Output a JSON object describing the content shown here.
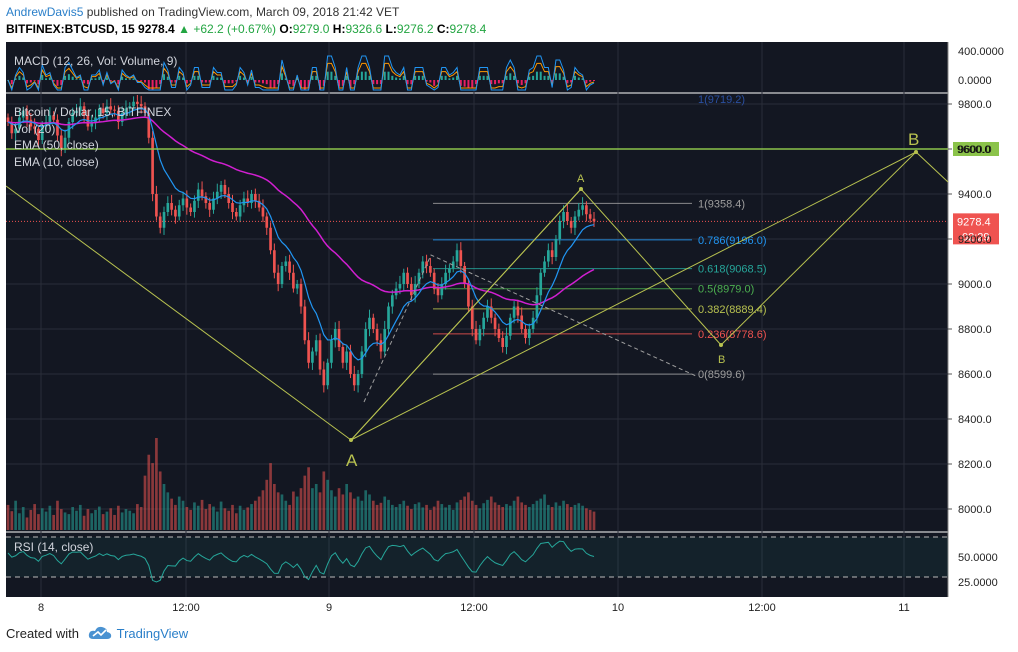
{
  "header": {
    "author": "AndrewDavis5",
    "published_text": "published on TradingView.com, March 09, 2018 21:42 VET",
    "symbol": "BITFINEX:BTCUSD, 15",
    "last": "9278.4",
    "change": "+62.2 (+0.67%)",
    "ohlc": [
      {
        "label": "O:",
        "value": "9279.0"
      },
      {
        "label": "H:",
        "value": "9326.6"
      },
      {
        "label": "L:",
        "value": "9276.2"
      },
      {
        "label": "C:",
        "value": "9278.4"
      }
    ]
  },
  "footer": {
    "created_with": "Created with",
    "brand": "TradingView",
    "logo_icon": "tradingview-cloud-icon"
  },
  "colors": {
    "background": "#131722",
    "candle_up": "#26a69a",
    "candle_down": "#ef5350",
    "ema50": "#d11fd1",
    "ema10": "#2196f3",
    "pattern": "#b8c250",
    "hline": "#8bc34a",
    "macd": "#2196f3",
    "signal": "#ff9800",
    "rsi": "#26a69a"
  },
  "chart_data": [
    {
      "type": "candlestick",
      "title": "Bitcoin / Dollar, 15, BITFINEX",
      "indicators": [
        "Vol (20)",
        "EMA (50, close)",
        "EMA (10, close)"
      ],
      "x_ticks": [
        "8",
        "12:00",
        "9",
        "12:00",
        "10",
        "12:00",
        "11"
      ],
      "y_ticks": [
        "8000.0",
        "8200.0",
        "8400.0",
        "8600.0",
        "8800.0",
        "9000.0",
        "9200.0",
        "9400.0",
        "9600.0",
        "9800.0"
      ],
      "ylim": [
        7940,
        9840
      ],
      "overlap_label": "1(9719.2)",
      "closes": [
        9720,
        9670,
        9690,
        9740,
        9770,
        9730,
        9700,
        9690,
        9640,
        9700,
        9720,
        9750,
        9730,
        9660,
        9600,
        9650,
        9720,
        9760,
        9770,
        9790,
        9750,
        9700,
        9720,
        9740,
        9780,
        9760,
        9790,
        9775,
        9770,
        9720,
        9760,
        9780,
        9790,
        9810,
        9800,
        9790,
        9760,
        9650,
        9400,
        9300,
        9250,
        9320,
        9360,
        9330,
        9300,
        9350,
        9380,
        9340,
        9320,
        9370,
        9420,
        9390,
        9360,
        9330,
        9380,
        9410,
        9440,
        9400,
        9360,
        9320,
        9300,
        9350,
        9380,
        9360,
        9400,
        9370,
        9340,
        9300,
        9250,
        9150,
        9050,
        9000,
        9080,
        9100,
        9050,
        8980,
        9000,
        8900,
        8750,
        8650,
        8700,
        8750,
        8620,
        8550,
        8650,
        8750,
        8800,
        8720,
        8650,
        8700,
        8600,
        8550,
        8600,
        8700,
        8800,
        8850,
        8800,
        8750,
        8700,
        8800,
        8900,
        8950,
        8980,
        9000,
        9050,
        9000,
        8950,
        9000,
        9050,
        9100,
        9080,
        9050,
        8980,
        8950,
        9000,
        9050,
        9070,
        9100,
        9150,
        9080,
        9000,
        8900,
        8800,
        8750,
        8800,
        8850,
        8900,
        8850,
        8800,
        8760,
        8720,
        8770,
        8850,
        8900,
        8860,
        8800,
        8760,
        8800,
        8850,
        8950,
        9050,
        9100,
        9150,
        9120,
        9200,
        9280,
        9320,
        9280,
        9250,
        9300,
        9330,
        9350,
        9310,
        9290,
        9278.4
      ],
      "volumes": [
        60,
        45,
        70,
        40,
        55,
        30,
        48,
        62,
        38,
        52,
        44,
        58,
        36,
        70,
        50,
        42,
        38,
        55,
        46,
        60,
        34,
        50,
        40,
        48,
        56,
        38,
        44,
        52,
        36,
        58,
        42,
        50,
        46,
        40,
        62,
        55,
        130,
        180,
        160,
        220,
        140,
        110,
        90,
        75,
        60,
        80,
        70,
        55,
        48,
        66,
        58,
        72,
        50,
        62,
        56,
        44,
        68,
        52,
        46,
        60,
        40,
        58,
        48,
        54,
        62,
        70,
        80,
        95,
        120,
        160,
        110,
        90,
        85,
        70,
        60,
        92,
        80,
        100,
        130,
        150,
        100,
        110,
        90,
        140,
        120,
        95,
        80,
        100,
        85,
        110,
        90,
        75,
        80,
        70,
        95,
        85,
        70,
        60,
        65,
        80,
        72,
        60,
        55,
        62,
        70,
        58,
        50,
        62,
        66,
        54,
        60,
        48,
        56,
        70,
        62,
        54,
        60,
        48,
        66,
        72,
        80,
        90,
        70,
        60,
        52,
        64,
        72,
        80,
        66,
        60,
        55,
        62,
        58,
        70,
        80,
        66,
        60,
        55,
        62,
        70,
        75,
        85,
        60,
        55,
        66,
        58,
        70,
        62,
        55,
        60,
        64,
        58,
        52,
        48,
        44
      ],
      "horizontal_line": {
        "value": 9600.0,
        "label": "9600.0"
      },
      "last_price": {
        "value": "9278.4",
        "countdown": "02:29"
      },
      "fibonacci": [
        {
          "ratio": "1",
          "value": 9358.4,
          "label": "1(9358.4)",
          "color": "#9e9e9e"
        },
        {
          "ratio": "0.786",
          "value": 9196.0,
          "label": "0.786(9196.0)",
          "color": "#2196f3"
        },
        {
          "ratio": "0.618",
          "value": 9068.5,
          "label": "0.618(9068.5)",
          "color": "#26a69a"
        },
        {
          "ratio": "0.5",
          "value": 8979.0,
          "label": "0.5(8979.0)",
          "color": "#4caf50"
        },
        {
          "ratio": "0.382",
          "value": 8889.4,
          "label": "0.382(8889.4)",
          "color": "#b8c250"
        },
        {
          "ratio": "0.236",
          "value": 8778.6,
          "label": "0.236(8778.6)",
          "color": "#ef5350"
        },
        {
          "ratio": "0",
          "value": 8599.6,
          "label": "0(8599.6)",
          "color": "#9e9e9e"
        }
      ],
      "pattern_labels": [
        "A",
        "B",
        "A",
        "B"
      ]
    },
    {
      "type": "line",
      "title": "MACD (12, 26, Vol: Volume, 9)",
      "y_ticks": [
        "400.0000",
        "0.0000"
      ]
    },
    {
      "type": "line",
      "title": "RSI (14, close)",
      "y_ticks": [
        "50.0000",
        "25.0000"
      ],
      "levels": [
        70,
        30
      ]
    }
  ]
}
